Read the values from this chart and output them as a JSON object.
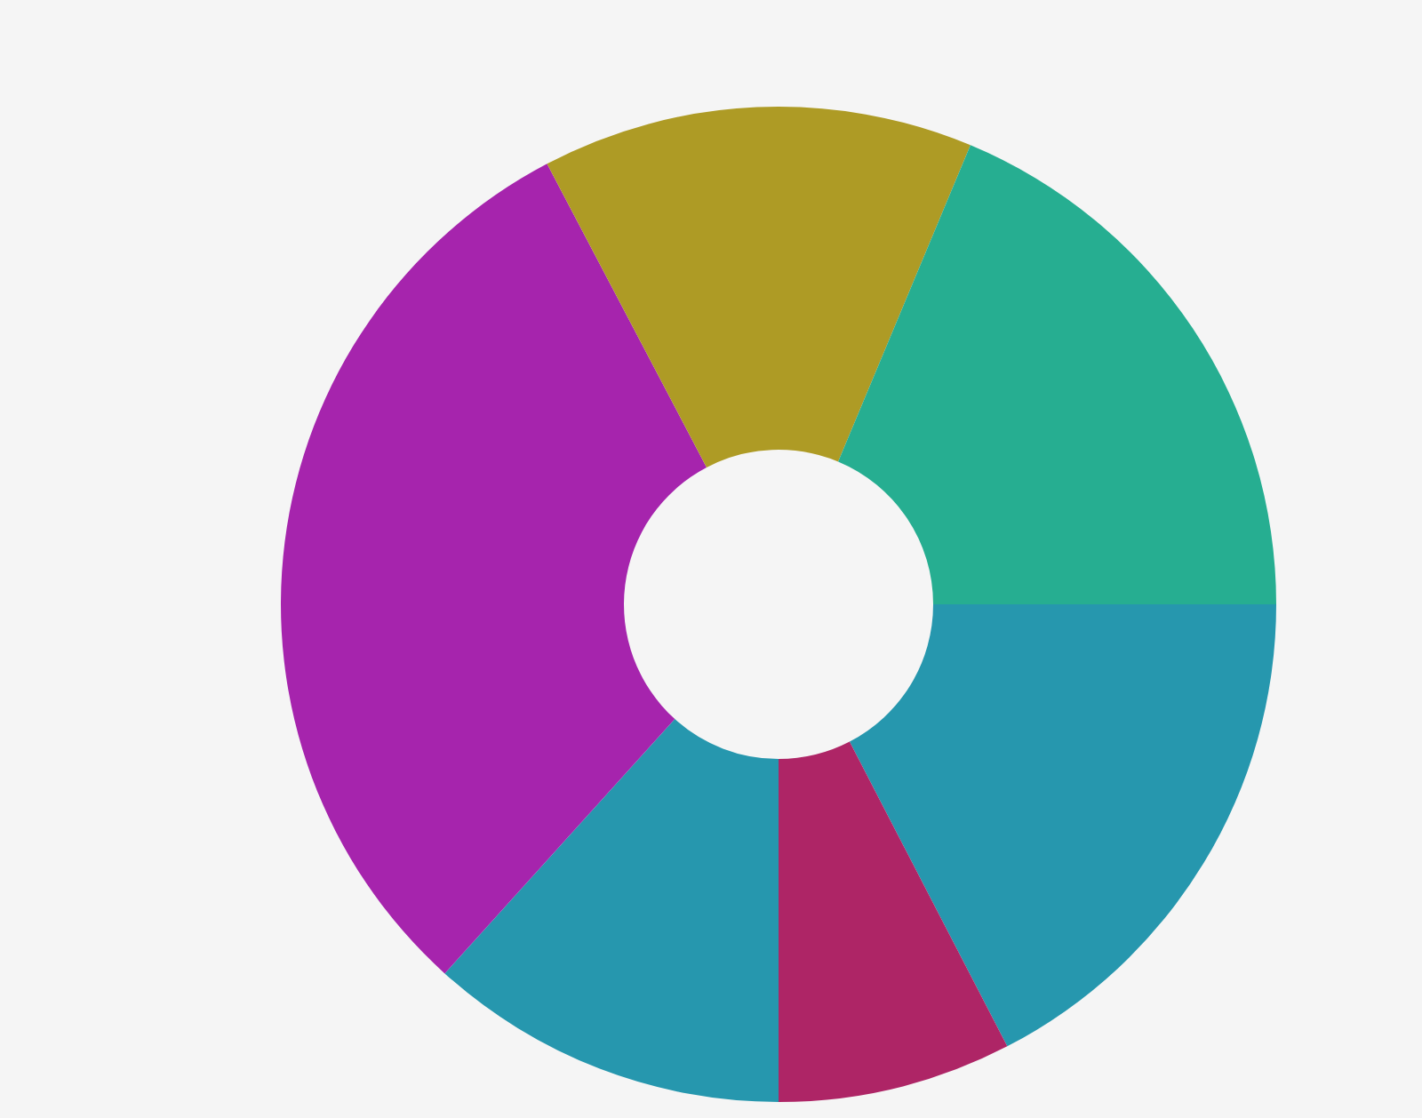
{
  "chart_data": {
    "type": "donut",
    "categories": [
      null,
      null,
      null,
      null,
      null,
      null
    ],
    "values": [
      17.4,
      7.6,
      11.7,
      30.6,
      14.0,
      18.7
    ],
    "colors": [
      "#2697ae",
      "#ae2566",
      "#2697ae",
      "#a624ad",
      "#ae9b25",
      "#26ae91"
    ]
  }
}
